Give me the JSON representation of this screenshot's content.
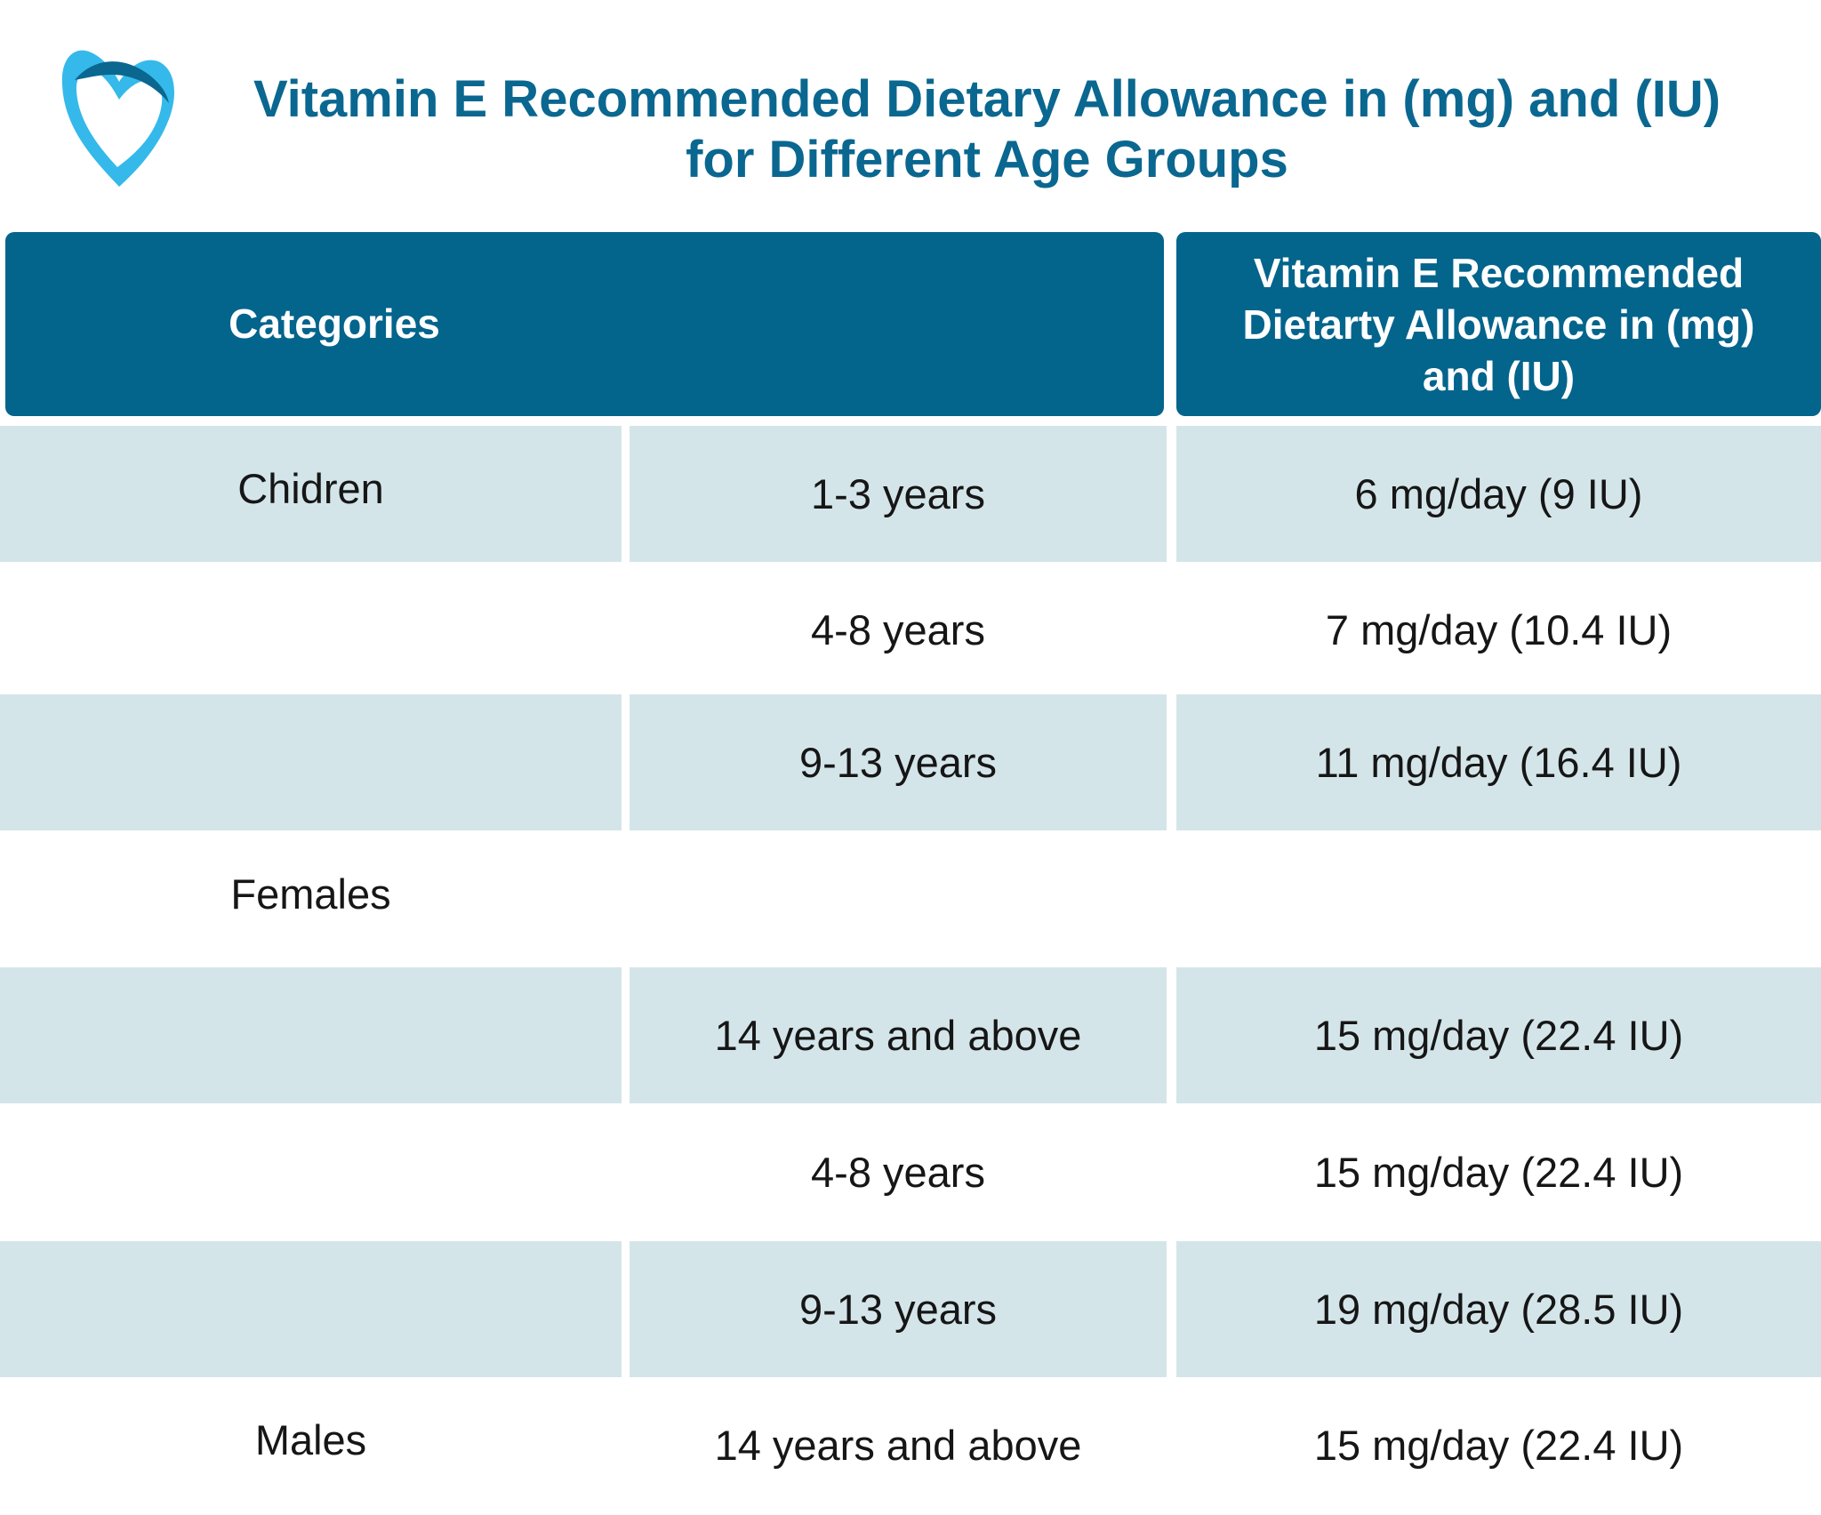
{
  "title_lines": [
    "Vitamin E Recommended Dietary Allowance in (mg) and (IU)",
    "for Different Age Groups"
  ],
  "colors": {
    "header_bg": "#03648c",
    "title": "#0a6790",
    "row_shade": "#d4e5ea",
    "logo_light": "#34b9ea",
    "logo_dark": "#0a6790"
  },
  "logo_icon": "heart-shield-logo",
  "table": {
    "headers": {
      "categories": "Categories",
      "rda_lines": [
        "Vitamin E Recommended",
        "Dietarty Allowance in (mg)",
        "and (IU)"
      ]
    },
    "rows": [
      {
        "category": "Chidren",
        "age": "1-3 years",
        "rda": "6 mg/day (9 IU)",
        "shaded": true
      },
      {
        "category": "",
        "age": "4-8 years",
        "rda": "7 mg/day (10.4 IU)",
        "shaded": false
      },
      {
        "category": "",
        "age": "9-13 years",
        "rda": "11 mg/day (16.4 IU)",
        "shaded": true
      },
      {
        "category": "Females",
        "age": "",
        "rda": "",
        "shaded": false
      },
      {
        "category": "",
        "age": "14 years and above",
        "rda": "15 mg/day (22.4 IU)",
        "shaded": true
      },
      {
        "category": "",
        "age": "4-8 years",
        "rda": "15 mg/day (22.4 IU)",
        "shaded": false
      },
      {
        "category": "",
        "age": "9-13 years",
        "rda": "19 mg/day (28.5 IU)",
        "shaded": true
      },
      {
        "category": "Males",
        "age": "14 years and above",
        "rda": "15 mg/day (22.4 IU)",
        "shaded": false
      }
    ]
  }
}
